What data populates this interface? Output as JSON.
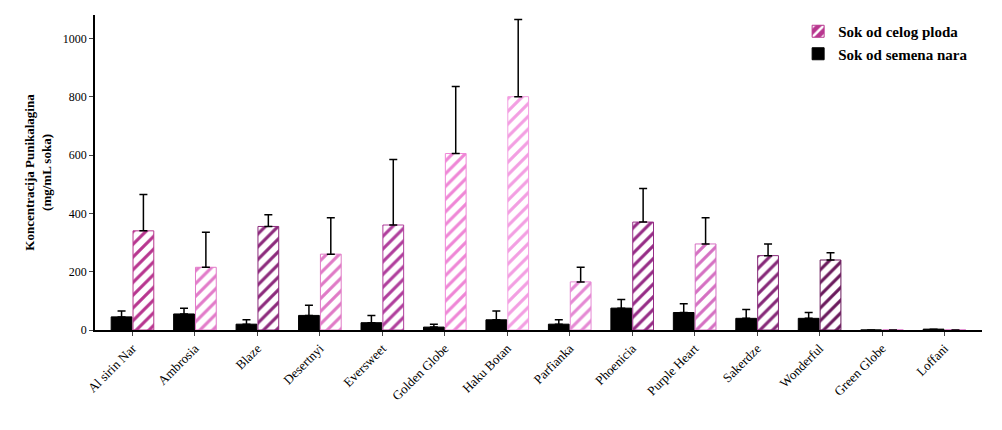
{
  "chart_data": {
    "type": "bar",
    "y_label": "Koncentracija Punikalagina\n(mg/mL soka)",
    "categories": [
      "Al sirin Nar",
      "Ambrosia",
      "Blaze",
      "Desertnyi",
      "Eversweet",
      "Golden Globe",
      "Haku Botan",
      "Parfianka",
      "Phoenicia",
      "Purple Heart",
      "Sakerdze",
      "Wonderful",
      "Green Globe",
      "Loffani"
    ],
    "series": [
      {
        "name": "Sok od semena nara",
        "color": "#000000",
        "values": [
          45,
          55,
          20,
          50,
          25,
          10,
          35,
          20,
          75,
          60,
          40,
          40,
          0,
          3
        ],
        "errors": [
          20,
          20,
          15,
          35,
          25,
          10,
          30,
          15,
          30,
          30,
          30,
          20,
          0,
          0
        ]
      },
      {
        "name": "Sok od celog ploda",
        "color": "#d86ec4",
        "marker": "hatch",
        "colors": [
          "#b8368f",
          "#e27bc9",
          "#8c2a7c",
          "#e07ac6",
          "#b03e9c",
          "#ef86d6",
          "#f39ee2",
          "#e589d4",
          "#962c86",
          "#d570c2",
          "#862878",
          "#6a1a5c",
          "#d86ec4",
          "#d86ec4"
        ],
        "values": [
          340,
          215,
          355,
          260,
          360,
          605,
          800,
          165,
          370,
          295,
          255,
          240,
          0,
          0
        ],
        "errors": [
          125,
          120,
          40,
          125,
          225,
          230,
          265,
          50,
          115,
          90,
          40,
          25,
          0,
          0
        ]
      }
    ],
    "ylim": [
      0,
      1080
    ],
    "yticks": [
      0,
      200,
      400,
      600,
      800,
      1000
    ],
    "legend": "top-right",
    "grid": false
  }
}
